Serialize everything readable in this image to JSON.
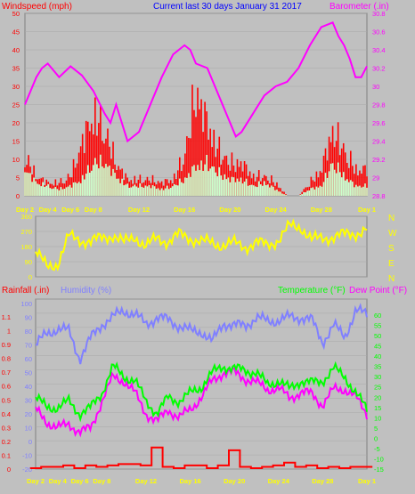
{
  "header": {
    "windspeed_label": "Windspeed (mph)",
    "title": "Current last 30 days January 31 2017",
    "barometer_label": "Barometer (.in)"
  },
  "labels": {
    "rainfall": "Rainfall (.in)",
    "humidity": "Humidity (%)",
    "temperature": "Temperature (°F)",
    "dewpoint": "Dew Point (°F)"
  },
  "colors": {
    "background": "#c0c0c0",
    "gust": "#ff0000",
    "wind": "#ccffcc",
    "barometer": "#ff00ff",
    "direction": "#ffff00",
    "humidity": "#8080ff",
    "temperature": "#00ff00",
    "dewpoint": "#ff00ff",
    "rain": "#ff0000",
    "day_labels": "#ffff00"
  },
  "x_axis": {
    "tick_labels": [
      "Day 2",
      "Day 4",
      "Day 6",
      "Day 8",
      "Day 12",
      "Day 16",
      "Day 20",
      "Day 24",
      "Day 28",
      "Day 1"
    ],
    "tick_days": [
      1,
      3,
      5,
      7,
      11,
      15,
      19,
      23,
      27,
      31
    ]
  },
  "chart_data": [
    {
      "id": "wind",
      "type": "area",
      "title": "Current last 30 days January 31 2017",
      "ylabel": "Windspeed (mph)",
      "ylim": [
        0,
        50
      ],
      "y_ticks": [
        0,
        5,
        10,
        15,
        20,
        25,
        30,
        35,
        40,
        45,
        50
      ],
      "y_tick_labels": [
        "0",
        "5",
        "10",
        "15",
        "20",
        "25",
        "30",
        "35",
        "40",
        "45",
        "50"
      ],
      "x": [
        1,
        2,
        3,
        4,
        5,
        6,
        7,
        8,
        9,
        10,
        11,
        12,
        13,
        14,
        15,
        16,
        17,
        18,
        19,
        20,
        21,
        22,
        23,
        24,
        25,
        26,
        27,
        28,
        29,
        30,
        31
      ],
      "series": [
        {
          "name": "Windspeed",
          "values": [
            8,
            4,
            3,
            2,
            3,
            5,
            10,
            10,
            6,
            3,
            3,
            3,
            2,
            3,
            5,
            9,
            10,
            7,
            5,
            5,
            3,
            4,
            2,
            0,
            0,
            2,
            3,
            10,
            6,
            3,
            3
          ]
        },
        {
          "name": "Gust",
          "values": [
            12,
            6,
            4,
            4,
            6,
            16,
            25,
            20,
            10,
            5,
            5,
            5,
            4,
            5,
            12,
            32,
            22,
            14,
            10,
            10,
            6,
            6,
            4,
            0,
            0,
            4,
            8,
            20,
            14,
            8,
            8
          ]
        }
      ]
    },
    {
      "id": "barometer",
      "type": "line",
      "ylabel": "Barometer (.in)",
      "ylim": [
        28.8,
        30.8
      ],
      "y_ticks": [
        28.8,
        29,
        29.2,
        29.4,
        29.6,
        29.8,
        30,
        30.2,
        30.4,
        30.6,
        30.8
      ],
      "y_tick_labels": [
        "28.8",
        "29",
        "29.2",
        "29.4",
        "29.6",
        "29.8",
        "30",
        "30.2",
        "30.4",
        "30.6",
        "30.8"
      ],
      "x": [
        1,
        1.5,
        2,
        2.5,
        3,
        4,
        5,
        6,
        7,
        8,
        8.5,
        9,
        10,
        11,
        12,
        13,
        14,
        15,
        15.5,
        16,
        17,
        18,
        19,
        19.5,
        20,
        21,
        22,
        23,
        24,
        25,
        26,
        27,
        28,
        28.5,
        29,
        29.5,
        30,
        30.5,
        31
      ],
      "series": [
        {
          "name": "Barometer",
          "values": [
            29.8,
            29.95,
            30.1,
            30.2,
            30.25,
            30.1,
            30.22,
            30.12,
            29.95,
            29.7,
            29.6,
            29.8,
            29.4,
            29.5,
            29.8,
            30.1,
            30.35,
            30.45,
            30.4,
            30.25,
            30.2,
            29.9,
            29.6,
            29.45,
            29.5,
            29.7,
            29.9,
            30,
            30.05,
            30.2,
            30.45,
            30.65,
            30.7,
            30.55,
            30.45,
            30.3,
            30.1,
            30.1,
            30.22
          ]
        }
      ]
    },
    {
      "id": "direction",
      "type": "line",
      "ylim": [
        0,
        360
      ],
      "y_ticks": [
        0,
        90,
        180,
        270,
        360
      ],
      "y_tick_labels": [
        "0",
        "90",
        "180",
        "270",
        "360"
      ],
      "compass_labels": [
        "N",
        "W",
        "S",
        "E",
        "N"
      ],
      "x": [
        1,
        2,
        3,
        4,
        5,
        6,
        7,
        8,
        9,
        10,
        11,
        12,
        13,
        14,
        15,
        16,
        17,
        18,
        19,
        20,
        21,
        22,
        23,
        24,
        25,
        26,
        27,
        28,
        29,
        30,
        31
      ],
      "series": [
        {
          "name": "Wind Direction",
          "values": [
            150,
            60,
            80,
            240,
            220,
            210,
            230,
            250,
            200,
            240,
            180,
            230,
            210,
            250,
            230,
            210,
            200,
            190,
            200,
            180,
            200,
            190,
            220,
            300,
            300,
            220,
            230,
            240,
            250,
            260,
            280
          ]
        }
      ]
    },
    {
      "id": "humidity",
      "type": "line",
      "ylabel": "Humidity (%)",
      "ylim": [
        -20,
        100
      ],
      "y_ticks": [
        -20,
        -10,
        0,
        10,
        20,
        30,
        40,
        50,
        60,
        70,
        80,
        90,
        100
      ],
      "y_tick_labels": [
        "-20",
        "-10",
        "0",
        "10",
        "20",
        "30",
        "40",
        "50",
        "60",
        "70",
        "80",
        "90",
        "100"
      ],
      "x": [
        1,
        2,
        3,
        4,
        5,
        6,
        7,
        8,
        9,
        10,
        11,
        12,
        13,
        14,
        15,
        16,
        17,
        18,
        19,
        20,
        21,
        22,
        23,
        24,
        25,
        26,
        27,
        28,
        29,
        30,
        31
      ],
      "series": [
        {
          "name": "Humidity",
          "values": [
            70,
            78,
            82,
            80,
            60,
            75,
            85,
            90,
            95,
            92,
            85,
            90,
            88,
            84,
            80,
            80,
            72,
            86,
            84,
            84,
            90,
            87,
            88,
            90,
            90,
            88,
            72,
            84,
            76,
            95,
            92
          ]
        }
      ]
    },
    {
      "id": "temperature",
      "type": "line",
      "ylabel": "Temperature (°F)",
      "ylim": [
        -15,
        60
      ],
      "y_ticks": [
        -15,
        -10,
        -5,
        0,
        5,
        10,
        15,
        20,
        25,
        30,
        35,
        40,
        45,
        50,
        55,
        60
      ],
      "y_tick_labels": [
        "-15",
        "-10",
        "-5",
        "0",
        "5",
        "10",
        "15",
        "20",
        "25",
        "30",
        "35",
        "40",
        "45",
        "50",
        "55",
        "60"
      ],
      "x": [
        1,
        2,
        3,
        4,
        5,
        6,
        7,
        8,
        9,
        10,
        11,
        12,
        13,
        14,
        15,
        16,
        17,
        18,
        19,
        20,
        21,
        22,
        23,
        24,
        25,
        26,
        27,
        28,
        29,
        30,
        31
      ],
      "series": [
        {
          "name": "Temperature",
          "values": [
            20,
            15,
            15,
            18,
            12,
            15,
            22,
            35,
            30,
            28,
            18,
            12,
            20,
            18,
            22,
            25,
            32,
            35,
            34,
            33,
            32,
            26,
            28,
            24,
            28,
            27,
            28,
            34,
            30,
            22,
            14
          ]
        },
        {
          "name": "Dew Point",
          "values": [
            14,
            8,
            5,
            7,
            3,
            5,
            18,
            30,
            28,
            22,
            12,
            8,
            14,
            10,
            14,
            20,
            28,
            32,
            32,
            29,
            27,
            24,
            24,
            20,
            22,
            22,
            16,
            24,
            24,
            20,
            12
          ]
        }
      ]
    },
    {
      "id": "rainfall",
      "type": "bar",
      "ylabel": "Rainfall (.in)",
      "ylim": [
        0,
        1.1
      ],
      "y_ticks": [
        0,
        0.1,
        0.2,
        0.3,
        0.4,
        0.5,
        0.6,
        0.7,
        0.8,
        0.9,
        1,
        1.1
      ],
      "y_tick_labels": [
        "0",
        "0.1",
        "0.2",
        "0.3",
        "0.4",
        "0.5",
        "0.6",
        "0.7",
        "0.8",
        "0.9",
        "1",
        "1.1"
      ],
      "x": [
        1,
        2,
        3,
        4,
        5,
        6,
        7,
        8,
        9,
        10,
        11,
        12,
        13,
        14,
        15,
        16,
        17,
        18,
        19,
        20,
        21,
        22,
        23,
        24,
        25,
        26,
        27,
        28,
        29,
        30,
        31
      ],
      "series": [
        {
          "name": "Rainfall",
          "values": [
            0,
            0.01,
            0.01,
            0.02,
            0,
            0.02,
            0.01,
            0.02,
            0.03,
            0.03,
            0.02,
            0.15,
            0.01,
            0,
            0.02,
            0.02,
            0,
            0.02,
            0.13,
            0.01,
            0,
            0.01,
            0.02,
            0.04,
            0.01,
            0.02,
            0,
            0.01,
            0,
            0.01,
            0.01
          ]
        }
      ]
    }
  ]
}
